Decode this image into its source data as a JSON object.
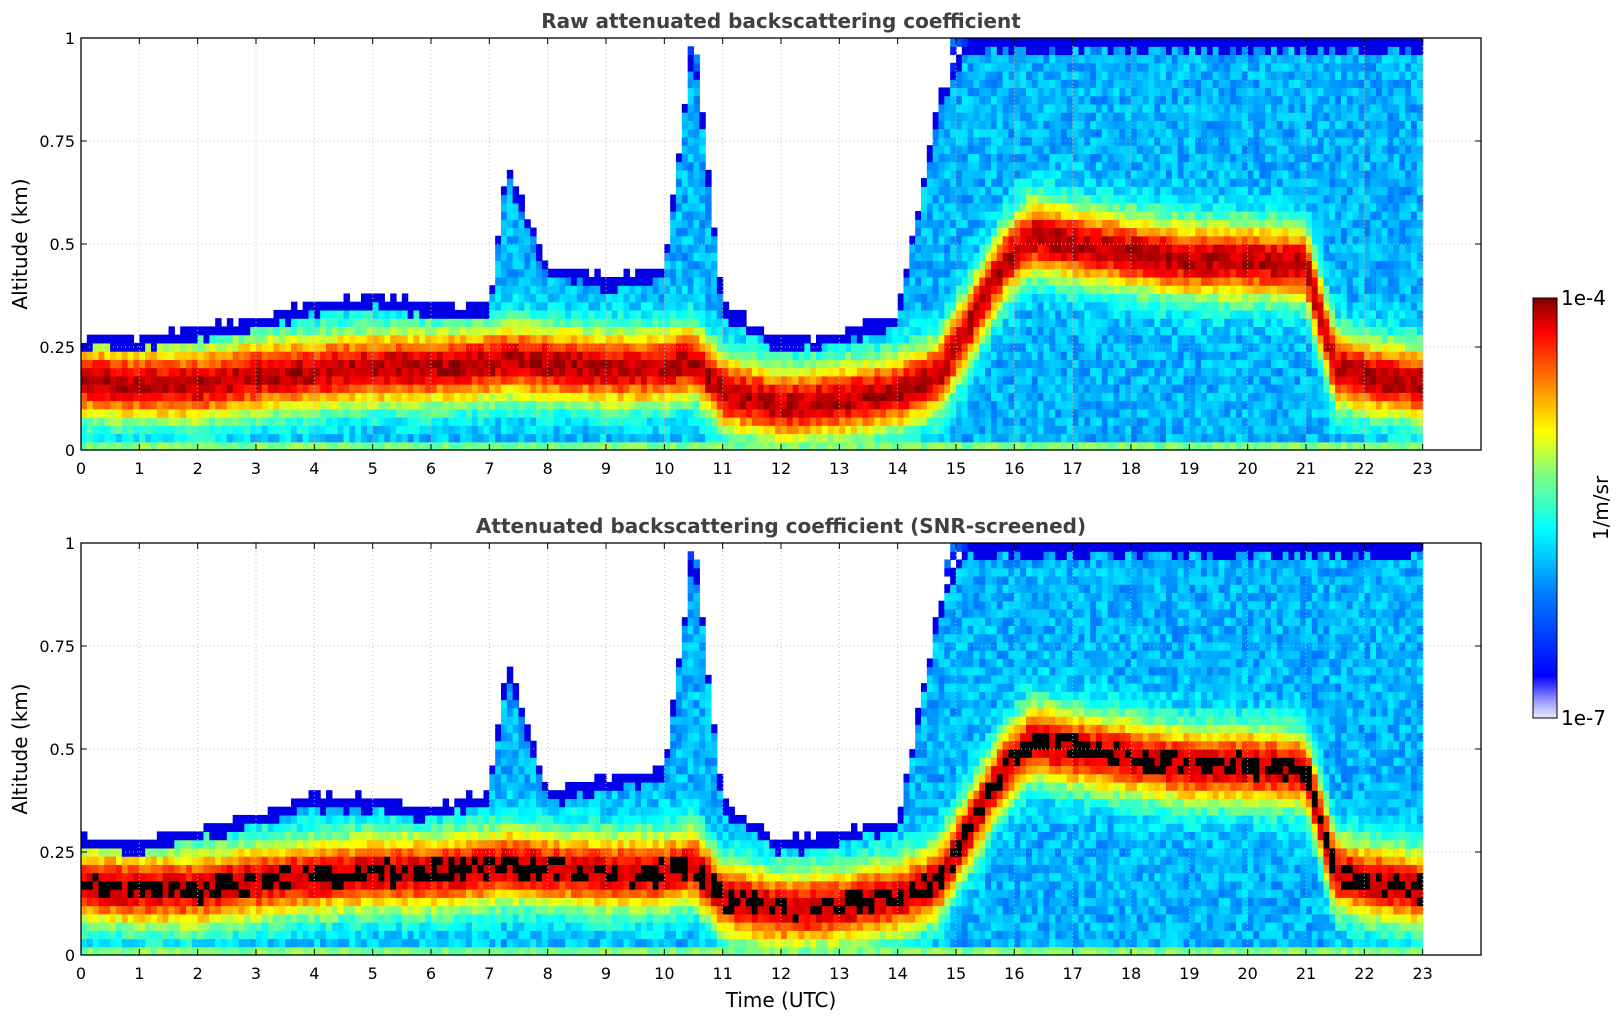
{
  "chart_data": [
    {
      "type": "heatmap",
      "title": "Raw attenuated backscattering coefficient",
      "xlabel": "",
      "ylabel": "Altitude (km)",
      "xlim": [
        0,
        24
      ],
      "ylim": [
        0,
        1
      ],
      "x_ticks": [
        "0",
        "1",
        "2",
        "3",
        "4",
        "5",
        "6",
        "7",
        "8",
        "9",
        "10",
        "11",
        "12",
        "13",
        "14",
        "15",
        "16",
        "17",
        "18",
        "19",
        "20",
        "21",
        "22",
        "23"
      ],
      "y_ticks": [
        "0",
        "0.25",
        "0.5",
        "0.75",
        "1"
      ],
      "grid": true,
      "colormap": "jet",
      "screened": false,
      "x_hours": [
        0,
        1,
        2,
        3,
        4,
        5,
        6,
        7,
        7.3,
        8,
        9,
        10,
        10.5,
        11,
        12,
        13,
        14,
        14.7,
        15.2,
        15.8,
        16.3,
        17,
        18,
        19,
        20,
        21,
        21.5,
        22,
        23
      ],
      "layer_center_km": [
        0.17,
        0.16,
        0.16,
        0.18,
        0.19,
        0.2,
        0.2,
        0.21,
        0.22,
        0.21,
        0.2,
        0.2,
        0.22,
        0.14,
        0.11,
        0.12,
        0.14,
        0.18,
        0.3,
        0.45,
        0.52,
        0.5,
        0.48,
        0.46,
        0.46,
        0.45,
        0.2,
        0.18,
        0.16
      ],
      "aerosol_top_km": [
        0.28,
        0.27,
        0.3,
        0.32,
        0.36,
        0.38,
        0.35,
        0.36,
        0.7,
        0.45,
        0.42,
        0.45,
        1.0,
        0.35,
        0.27,
        0.28,
        0.33,
        0.85,
        1.0,
        1.0,
        1.0,
        1.0,
        1.0,
        1.0,
        1.0,
        1.0,
        1.0,
        1.0,
        1.0
      ]
    },
    {
      "type": "heatmap",
      "title": "Attenuated backscattering coefficient (SNR-screened)",
      "xlabel": "Time (UTC)",
      "ylabel": "Altitude (km)",
      "xlim": [
        0,
        24
      ],
      "ylim": [
        0,
        1
      ],
      "x_ticks": [
        "0",
        "1",
        "2",
        "3",
        "4",
        "5",
        "6",
        "7",
        "8",
        "9",
        "10",
        "11",
        "12",
        "13",
        "14",
        "15",
        "16",
        "17",
        "18",
        "19",
        "20",
        "21",
        "22",
        "23"
      ],
      "y_ticks": [
        "0",
        "0.25",
        "0.5",
        "0.75",
        "1"
      ],
      "grid": true,
      "colormap": "jet",
      "screened": true,
      "x_hours": [
        0,
        1,
        2,
        3,
        4,
        5,
        6,
        7,
        7.3,
        8,
        9,
        10,
        10.5,
        11,
        12,
        13,
        14,
        14.7,
        15.2,
        15.8,
        16.3,
        17,
        18,
        19,
        20,
        21,
        21.5,
        22,
        23
      ],
      "layer_center_km": [
        0.17,
        0.16,
        0.16,
        0.18,
        0.19,
        0.2,
        0.2,
        0.21,
        0.22,
        0.21,
        0.2,
        0.2,
        0.22,
        0.14,
        0.11,
        0.12,
        0.14,
        0.18,
        0.3,
        0.45,
        0.52,
        0.5,
        0.48,
        0.46,
        0.46,
        0.45,
        0.2,
        0.18,
        0.16
      ],
      "aerosol_top_km": [
        0.29,
        0.28,
        0.31,
        0.34,
        0.39,
        0.38,
        0.36,
        0.4,
        0.72,
        0.4,
        0.43,
        0.45,
        1.0,
        0.38,
        0.28,
        0.3,
        0.33,
        0.85,
        1.0,
        1.0,
        1.0,
        1.0,
        1.0,
        1.0,
        1.0,
        1.0,
        1.0,
        1.0,
        1.0
      ]
    }
  ],
  "colorbar": {
    "max_label": "1e-4",
    "min_label": "1e-7",
    "unit_label": "1/m/sr",
    "scale": "log"
  }
}
